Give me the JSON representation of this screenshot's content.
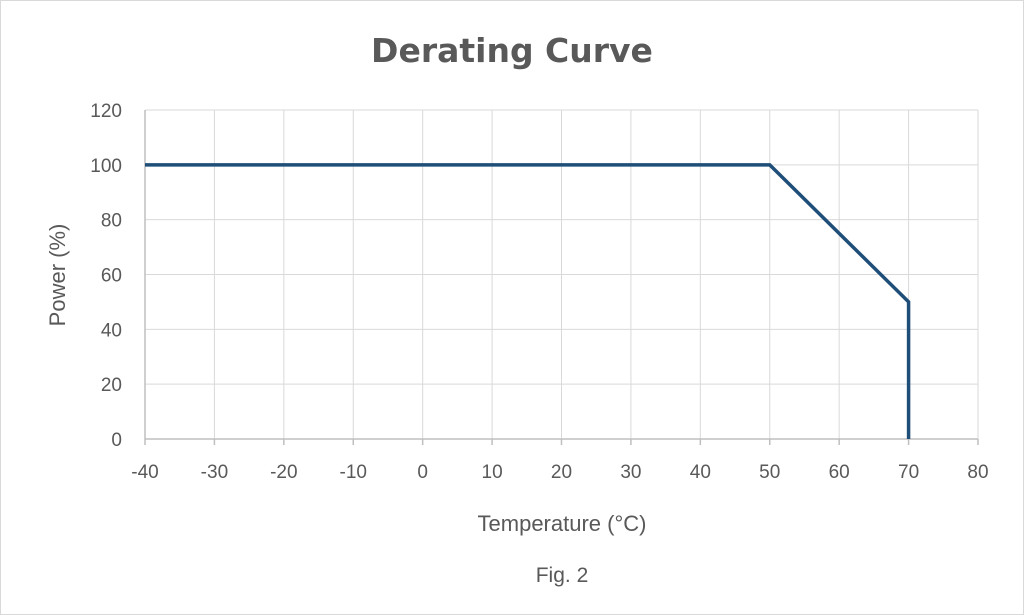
{
  "chart_data": {
    "type": "line",
    "title": "Derating Curve",
    "xlabel": "Temperature (°C)",
    "ylabel": "Power (%)",
    "caption": "Fig. 2",
    "xlim": [
      -40,
      80
    ],
    "ylim": [
      0,
      120
    ],
    "x_ticks": [
      -40,
      -30,
      -20,
      -10,
      0,
      10,
      20,
      30,
      40,
      50,
      60,
      70,
      80
    ],
    "y_ticks": [
      0,
      20,
      40,
      60,
      80,
      100,
      120
    ],
    "grid": true,
    "series": [
      {
        "x": [
          -40,
          50,
          70,
          70
        ],
        "y": [
          100,
          100,
          50,
          0
        ],
        "color": "#1f4e79"
      }
    ]
  },
  "colors": {
    "grid": "#d9d9d9",
    "axis": "#bfbfbf",
    "text": "#595959",
    "line": "#1f4e79"
  }
}
